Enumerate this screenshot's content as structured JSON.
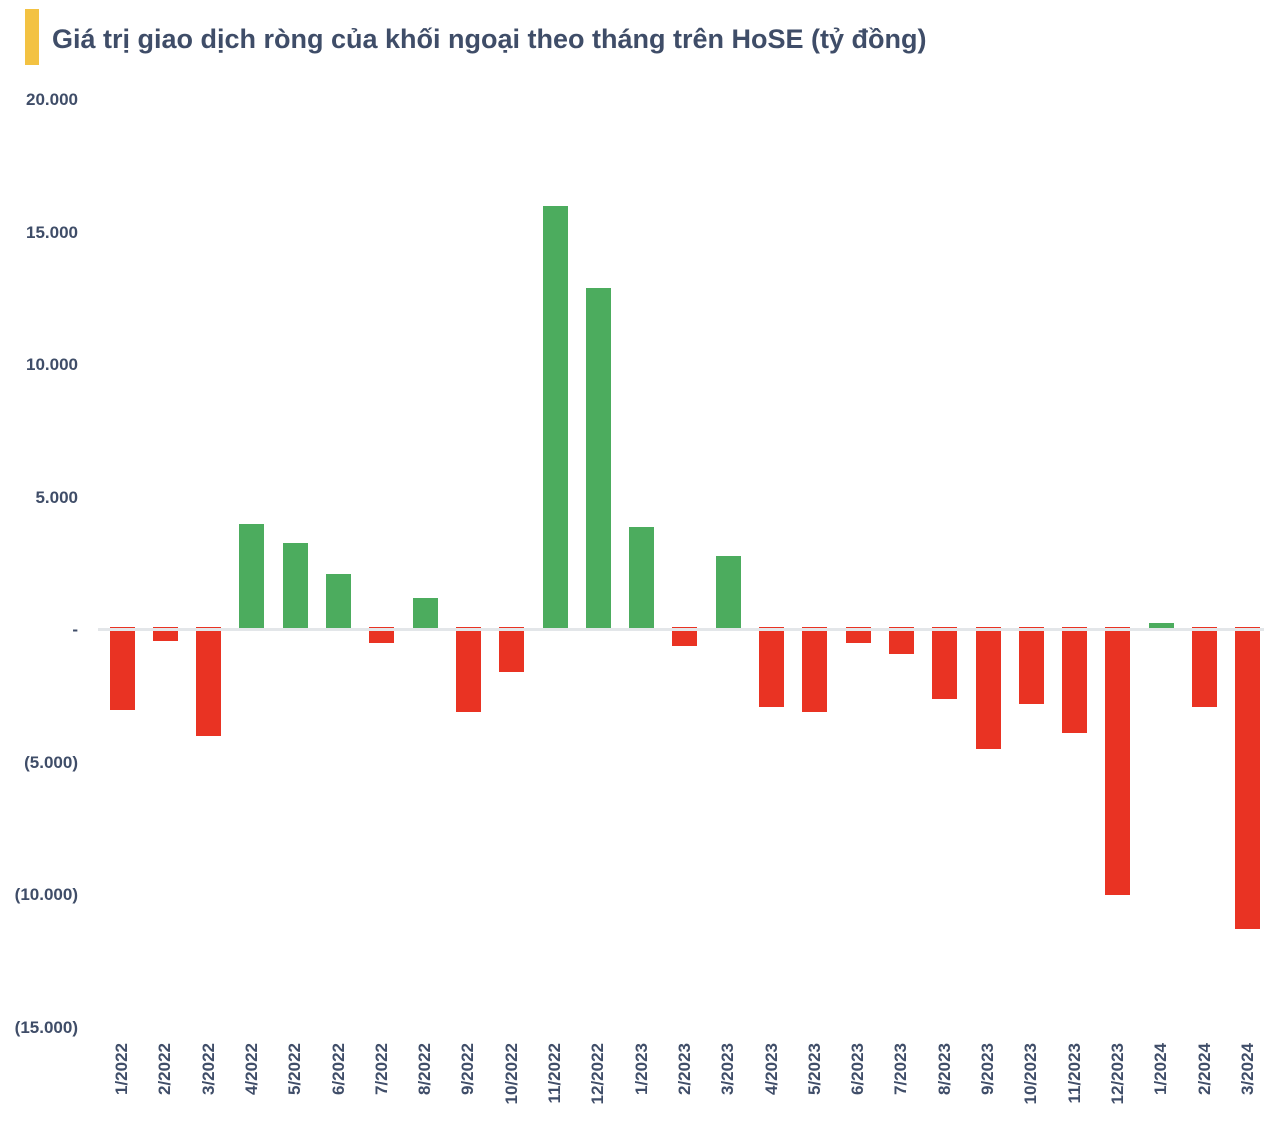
{
  "title": {
    "text": "Giá trị giao dịch ròng của khối ngoại theo tháng trên HoSE (tỷ đồng)",
    "text_color": "#3F4D68",
    "accent_color": "#F3C242"
  },
  "chart_data": {
    "type": "bar",
    "title": "Giá trị giao dịch ròng của khối ngoại theo tháng trên HoSE (tỷ đồng)",
    "xlabel": "",
    "ylabel": "",
    "ylim": [
      -15000,
      20000
    ],
    "grid": false,
    "legend_position": "none",
    "categories": [
      "1/2022",
      "2/2022",
      "3/2022",
      "4/2022",
      "5/2022",
      "6/2022",
      "7/2022",
      "8/2022",
      "9/2022",
      "10/2022",
      "11/2022",
      "12/2022",
      "1/2023",
      "2/2023",
      "3/2023",
      "4/2023",
      "5/2023",
      "6/2023",
      "7/2023",
      "8/2023",
      "9/2023",
      "10/2023",
      "11/2023",
      "12/2023",
      "1/2024",
      "2/2024",
      "3/2024"
    ],
    "values": [
      -3000,
      -400,
      -4000,
      4000,
      3300,
      2100,
      -500,
      1200,
      -3100,
      -1600,
      16000,
      12900,
      3900,
      -600,
      2800,
      -2900,
      -3100,
      -500,
      -900,
      -2600,
      -4500,
      -2800,
      -3900,
      -10000,
      250,
      -2900,
      -11300
    ],
    "y_ticks": [
      {
        "value": 20000,
        "label": "20.000"
      },
      {
        "value": 15000,
        "label": "15.000"
      },
      {
        "value": 10000,
        "label": "10.000"
      },
      {
        "value": 5000,
        "label": "5.000"
      },
      {
        "value": 0,
        "label": "-"
      },
      {
        "value": -5000,
        "label": "(5.000)"
      },
      {
        "value": -10000,
        "label": "(10.000)"
      },
      {
        "value": -15000,
        "label": "(15.000)"
      }
    ],
    "positive_color": "#4CAC5E",
    "negative_color": "#E93323",
    "axis_line_color": "#E3E6E9",
    "tick_label_color": "#3F4D68"
  }
}
